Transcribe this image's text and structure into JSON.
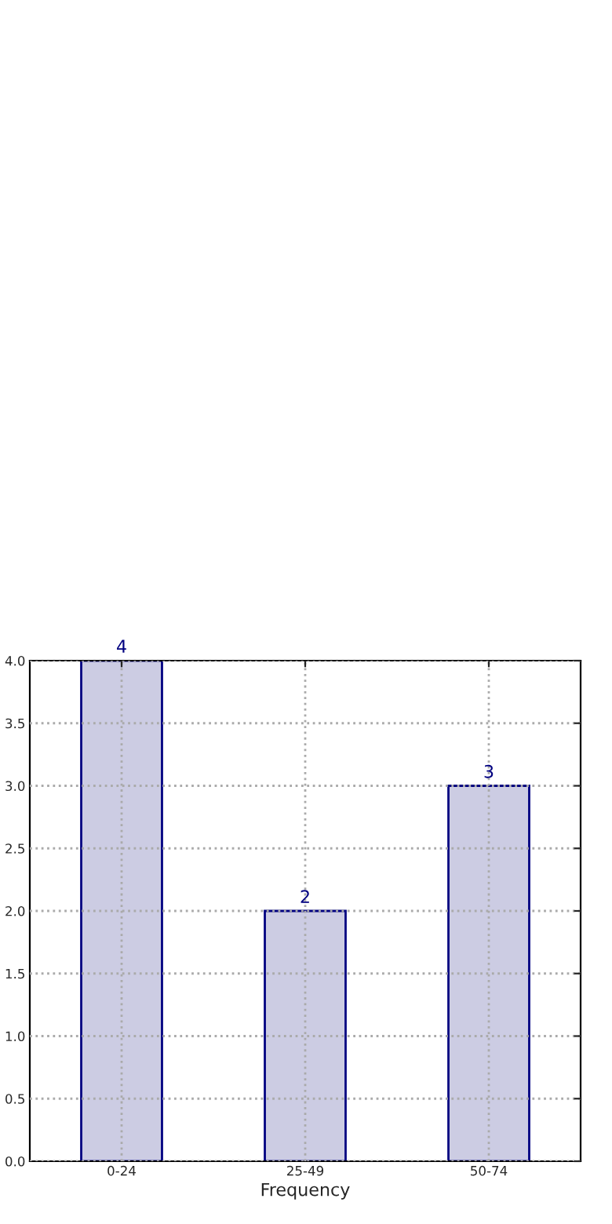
{
  "chart_data": {
    "type": "bar",
    "xlabel": "Frequency",
    "categories": [
      "0-24",
      "25-49",
      "50-74"
    ],
    "values": [
      4,
      2,
      3
    ],
    "color": "#ccccE3",
    "ylim": [
      0,
      4
    ],
    "yticks": [
      {
        "value": 0,
        "label": "0.0"
      },
      {
        "value": 0.5,
        "label": "0.5"
      },
      {
        "value": 1,
        "label": "1.0"
      },
      {
        "value": 1.5,
        "label": "1.5"
      },
      {
        "value": 2,
        "label": "2.0"
      },
      {
        "value": 2.5,
        "label": "2.5"
      },
      {
        "value": 3,
        "label": "3.0"
      },
      {
        "value": 3.5,
        "label": "3.5"
      },
      {
        "value": 4,
        "label": "4.0"
      }
    ],
    "grid": true,
    "data_labels": true
  }
}
